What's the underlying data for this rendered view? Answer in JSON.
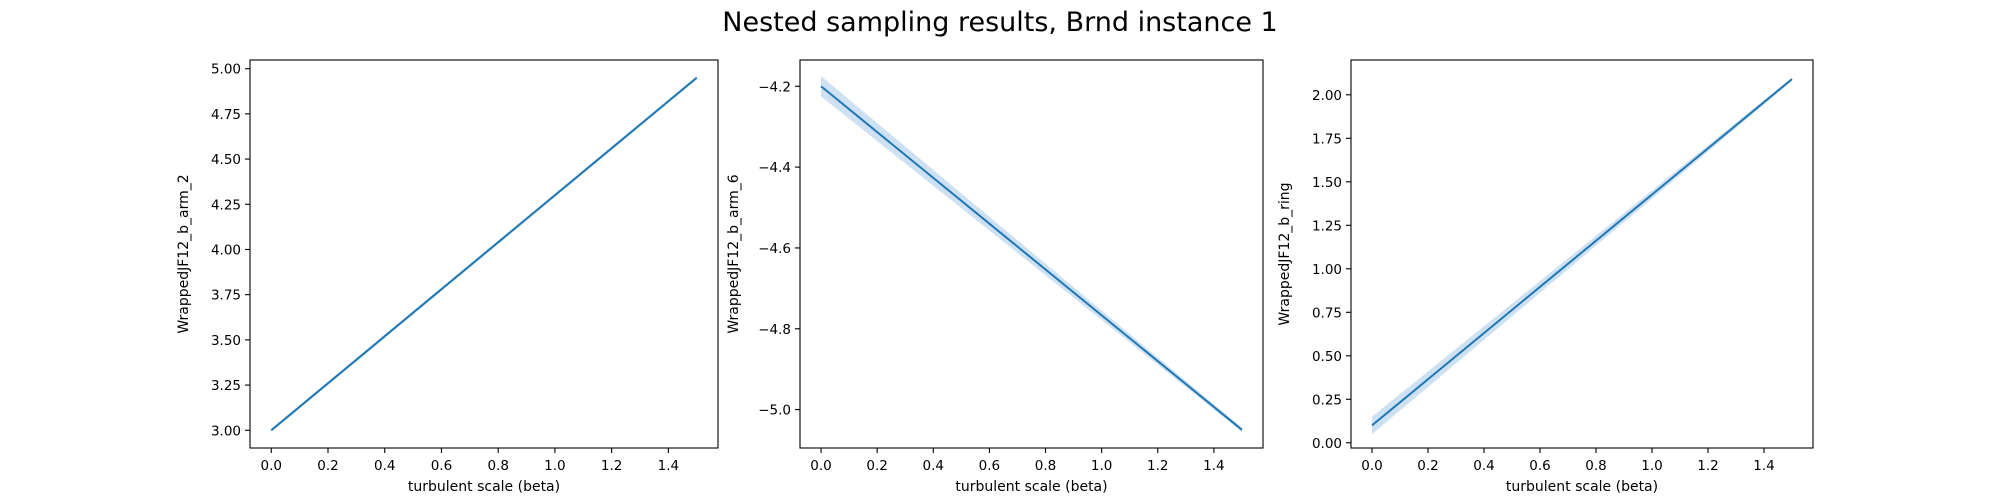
{
  "figure": {
    "title": "Nested sampling results, Brnd instance 1"
  },
  "colors": {
    "line": "#1f77b4",
    "band": "#a6c8e8"
  },
  "chart_data": [
    {
      "type": "line",
      "xlabel": "turbulent scale (beta)",
      "ylabel": "WrappedJF12_b_arm_2",
      "xlim": [
        -0.075,
        1.575
      ],
      "ylim": [
        2.902,
        5.048
      ],
      "xticks": [
        0.0,
        0.2,
        0.4,
        0.6,
        0.8,
        1.0,
        1.2,
        1.4
      ],
      "xtick_labels": [
        "0.0",
        "0.2",
        "0.4",
        "0.6",
        "0.8",
        "1.0",
        "1.2",
        "1.4"
      ],
      "yticks": [
        3.0,
        3.25,
        3.5,
        3.75,
        4.0,
        4.25,
        4.5,
        4.75,
        5.0
      ],
      "ytick_labels": [
        "3.00",
        "3.25",
        "3.50",
        "3.75",
        "4.00",
        "4.25",
        "4.50",
        "4.75",
        "5.00"
      ],
      "grid": false,
      "series": [
        {
          "x": [
            0.0,
            1.5
          ],
          "y": [
            3.0,
            4.95
          ],
          "band_lower": [
            2.99,
            4.94
          ],
          "band_upper": [
            3.01,
            4.96
          ]
        }
      ]
    },
    {
      "type": "line",
      "xlabel": "turbulent scale (beta)",
      "ylabel": "WrappedJF12_b_arm_6",
      "xlim": [
        -0.075,
        1.575
      ],
      "ylim": [
        -5.095,
        -4.135
      ],
      "xticks": [
        0.0,
        0.2,
        0.4,
        0.6,
        0.8,
        1.0,
        1.2,
        1.4
      ],
      "xtick_labels": [
        "0.0",
        "0.2",
        "0.4",
        "0.6",
        "0.8",
        "1.0",
        "1.2",
        "1.4"
      ],
      "yticks": [
        -5.0,
        -4.8,
        -4.6,
        -4.4,
        -4.2
      ],
      "ytick_labels": [
        "−5.0",
        "−4.8",
        "−4.6",
        "−4.4",
        "−4.2"
      ],
      "grid": false,
      "series": [
        {
          "x": [
            0.0,
            1.5
          ],
          "y": [
            -4.2,
            -5.05
          ],
          "band_lower": [
            -4.225,
            -5.055
          ],
          "band_upper": [
            -4.175,
            -5.045
          ]
        }
      ]
    },
    {
      "type": "line",
      "xlabel": "turbulent scale (beta)",
      "ylabel": "WrappedJF12_b_ring",
      "xlim": [
        -0.075,
        1.575
      ],
      "ylim": [
        -0.03,
        2.2
      ],
      "xticks": [
        0.0,
        0.2,
        0.4,
        0.6,
        0.8,
        1.0,
        1.2,
        1.4
      ],
      "xtick_labels": [
        "0.0",
        "0.2",
        "0.4",
        "0.6",
        "0.8",
        "1.0",
        "1.2",
        "1.4"
      ],
      "yticks": [
        0.0,
        0.25,
        0.5,
        0.75,
        1.0,
        1.25,
        1.5,
        1.75,
        2.0
      ],
      "ytick_labels": [
        "0.00",
        "0.25",
        "0.50",
        "0.75",
        "1.00",
        "1.25",
        "1.50",
        "1.75",
        "2.00"
      ],
      "grid": false,
      "series": [
        {
          "x": [
            0.0,
            1.5
          ],
          "y": [
            0.1,
            2.09
          ],
          "band_lower": [
            0.05,
            2.08
          ],
          "band_upper": [
            0.15,
            2.1
          ]
        }
      ]
    }
  ]
}
